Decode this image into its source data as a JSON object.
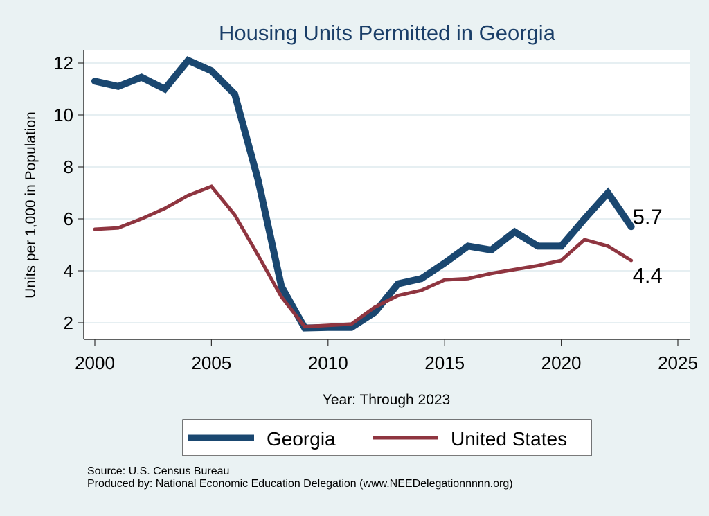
{
  "chart_data": {
    "type": "line",
    "title": "Housing Units Permitted in Georgia",
    "xlabel": "Year: Through 2023",
    "ylabel": "Units per 1,000 in Population",
    "xlim": [
      2000,
      2025
    ],
    "ylim": [
      1.5,
      12.5
    ],
    "xticks": [
      2000,
      2005,
      2010,
      2015,
      2020,
      2025
    ],
    "yticks": [
      2,
      4,
      6,
      8,
      10,
      12
    ],
    "grid": true,
    "legend_position": "bottom",
    "x": [
      2000,
      2001,
      2002,
      2003,
      2004,
      2005,
      2006,
      2007,
      2008,
      2009,
      2010,
      2011,
      2012,
      2013,
      2014,
      2015,
      2016,
      2017,
      2018,
      2019,
      2020,
      2021,
      2022,
      2023
    ],
    "series": [
      {
        "name": "Georgia",
        "color": "#1a4770",
        "values": [
          11.3,
          11.1,
          11.45,
          11.0,
          12.1,
          11.7,
          10.8,
          7.5,
          3.4,
          1.8,
          1.82,
          1.82,
          2.4,
          3.5,
          3.7,
          4.3,
          4.95,
          4.8,
          5.5,
          4.95,
          4.95,
          6.0,
          7.0,
          5.7
        ],
        "end_label": "5.7"
      },
      {
        "name": "United States",
        "color": "#8f3540",
        "values": [
          5.6,
          5.65,
          6.0,
          6.4,
          6.9,
          7.25,
          6.15,
          4.6,
          3.0,
          1.85,
          1.9,
          1.95,
          2.6,
          3.05,
          3.25,
          3.65,
          3.7,
          3.9,
          4.05,
          4.2,
          4.4,
          5.2,
          4.95,
          4.4
        ],
        "end_label": "4.4"
      }
    ],
    "notes": [
      "Source: U.S. Census Bureau",
      "Produced by: National Economic Education Delegation (www.NEEDelegationnnnn.org)"
    ]
  }
}
